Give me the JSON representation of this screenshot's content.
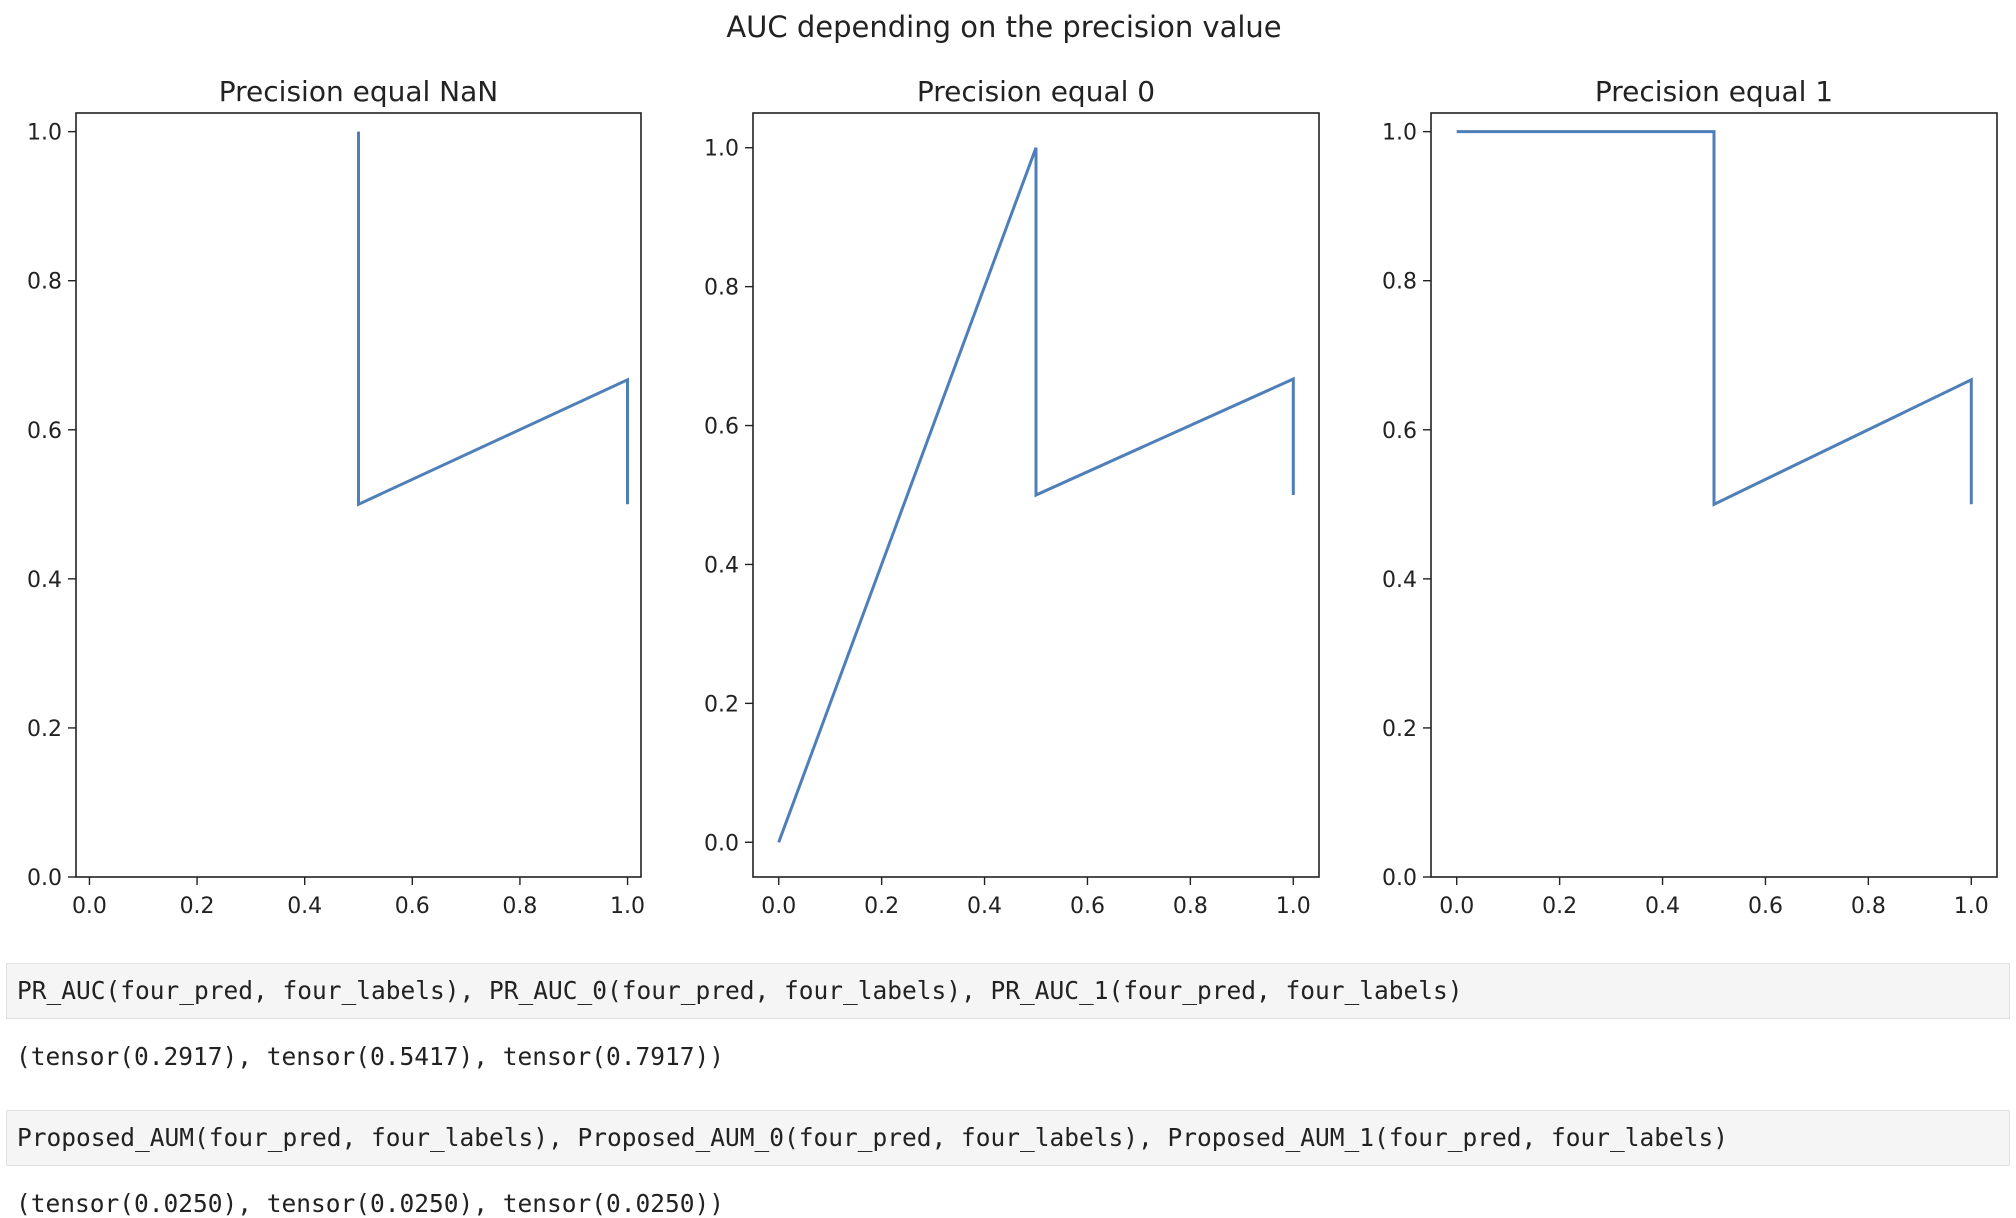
{
  "figure": {
    "suptitle": "AUC depending on the precision value"
  },
  "chart_data": [
    {
      "type": "line",
      "title": "Precision equal NaN",
      "xlim": [
        -0.025,
        1.025
      ],
      "ylim": [
        0.0,
        1.025
      ],
      "xticks": [
        "0.0",
        "0.2",
        "0.4",
        "0.6",
        "0.8",
        "1.0"
      ],
      "yticks": [
        "0.0",
        "0.2",
        "0.4",
        "0.6",
        "0.8",
        "1.0"
      ],
      "grid": false,
      "series": [
        {
          "color": "#4f7fb8",
          "x": [
            0.5,
            0.5,
            1.0,
            1.0
          ],
          "y": [
            1.0,
            0.5,
            0.667,
            0.5
          ]
        }
      ]
    },
    {
      "type": "line",
      "title": "Precision equal 0",
      "xlim": [
        -0.05,
        1.05
      ],
      "ylim": [
        -0.05,
        1.05
      ],
      "xticks": [
        "0.0",
        "0.2",
        "0.4",
        "0.6",
        "0.8",
        "1.0"
      ],
      "yticks": [
        "0.0",
        "0.2",
        "0.4",
        "0.6",
        "0.8",
        "1.0"
      ],
      "grid": false,
      "series": [
        {
          "color": "#4f7fb8",
          "x": [
            0.0,
            0.5,
            0.5,
            1.0,
            1.0
          ],
          "y": [
            0.0,
            1.0,
            0.5,
            0.667,
            0.5
          ]
        }
      ]
    },
    {
      "type": "line",
      "title": "Precision equal 1",
      "xlim": [
        -0.05,
        1.05
      ],
      "ylim": [
        0.0,
        1.025
      ],
      "xticks": [
        "0.0",
        "0.2",
        "0.4",
        "0.6",
        "0.8",
        "1.0"
      ],
      "yticks": [
        "0.0",
        "0.2",
        "0.4",
        "0.6",
        "0.8",
        "1.0"
      ],
      "grid": false,
      "series": [
        {
          "color": "#4f7fb8",
          "x": [
            0.0,
            0.5,
            0.5,
            1.0,
            1.0
          ],
          "y": [
            1.0,
            1.0,
            0.5,
            0.667,
            0.5
          ]
        }
      ]
    }
  ],
  "cells": [
    {
      "code": "PR_AUC(four_pred, four_labels), PR_AUC_0(four_pred, four_labels), PR_AUC_1(four_pred, four_labels)",
      "output": "(tensor(0.2917), tensor(0.5417), tensor(0.7917))"
    },
    {
      "code": "Proposed_AUM(four_pred, four_labels), Proposed_AUM_0(four_pred, four_labels), Proposed_AUM_1(four_pred, four_labels)",
      "output": "(tensor(0.0250), tensor(0.0250), tensor(0.0250))"
    }
  ]
}
